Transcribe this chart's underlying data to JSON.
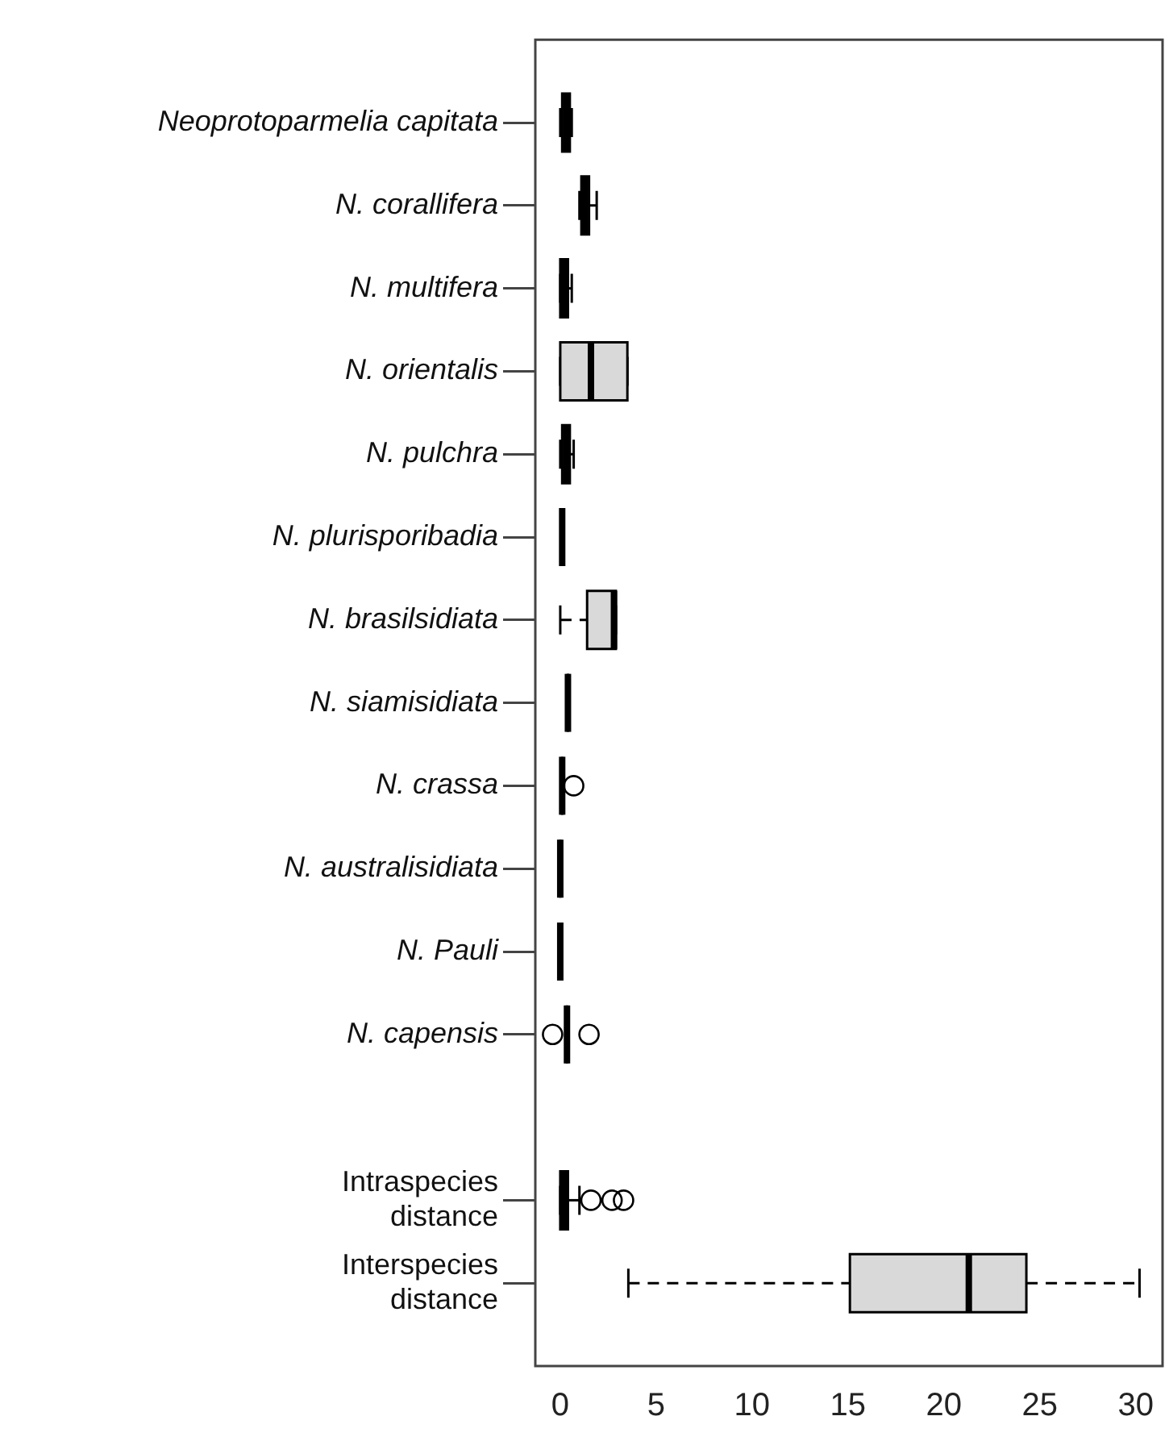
{
  "chart_data": {
    "type": "box",
    "orientation": "horizontal",
    "categories": [
      "Neoprotoparmelia capitata",
      "N. corallifera",
      "N. multifera",
      "N. orientalis",
      "N. pulchra",
      "N. plurisporibadia",
      "N. brasilsidiata",
      "N. siamisidiata",
      "N. crassa",
      "N. australisidiata",
      "N. Pauli",
      "N. capensis",
      null,
      "Intraspecies\ndistance",
      "Interspecies\ndistance"
    ],
    "boxes": [
      {
        "low": 0,
        "q1": 0.1,
        "median": 0.3,
        "q3": 0.5,
        "high": 0.6
      },
      {
        "low": 1.0,
        "q1": 1.1,
        "median": 1.3,
        "q3": 1.5,
        "high": 1.9
      },
      {
        "low": 0,
        "q1": 0,
        "median": 0.2,
        "q3": 0.4,
        "high": 0.6
      },
      {
        "low": 0,
        "q1": 0,
        "median": 1.6,
        "q3": 3.5,
        "high": 3.5
      },
      {
        "low": 0,
        "q1": 0.1,
        "median": 0.3,
        "q3": 0.5,
        "high": 0.7
      },
      {
        "low": 0.1,
        "q1": 0.1,
        "median": 0.1,
        "q3": 0.1,
        "high": 0.1
      },
      {
        "low": 0,
        "q1": 1.4,
        "median": 2.8,
        "q3": 2.9,
        "high": 2.9
      },
      {
        "low": 0.4,
        "q1": 0.4,
        "median": 0.4,
        "q3": 0.4,
        "high": 0.4
      },
      {
        "low": 0.1,
        "q1": 0.1,
        "median": 0.1,
        "q3": 0.1,
        "high": 0.1,
        "outliers": [
          0.7
        ]
      },
      {
        "low": 0,
        "q1": 0,
        "median": 0,
        "q3": 0,
        "high": 0
      },
      {
        "low": 0,
        "q1": 0,
        "median": 0,
        "q3": 0,
        "high": 0
      },
      {
        "low": 0.35,
        "q1": 0.35,
        "median": 0.35,
        "q3": 0.35,
        "high": 0.35,
        "outliers": [
          -0.4,
          1.5
        ]
      },
      null,
      {
        "low": 0,
        "q1": 0,
        "median": 0.2,
        "q3": 0.4,
        "high": 1.0,
        "outliers": [
          1.6,
          2.7,
          3.3
        ]
      },
      {
        "low": 3.55,
        "q1": 15.1,
        "median": 21.3,
        "q3": 24.3,
        "high": 30.2
      }
    ],
    "colors": [
      "#d9d9d9",
      "#d9d9d9",
      "#d9d9d9",
      "#d9d9d9",
      "#d9d9d9",
      "#000000",
      "#d9d9d9",
      "#000000",
      "#000000",
      "#000000",
      "#000000",
      "#000000",
      null,
      "#d9d9d9",
      "#d9d9d9"
    ],
    "line_style": "dashed",
    "xlim": [
      -1.3,
      31.4
    ],
    "xticks": [
      0,
      5,
      10,
      15,
      20,
      25,
      30
    ],
    "grid": false,
    "legend": false
  }
}
